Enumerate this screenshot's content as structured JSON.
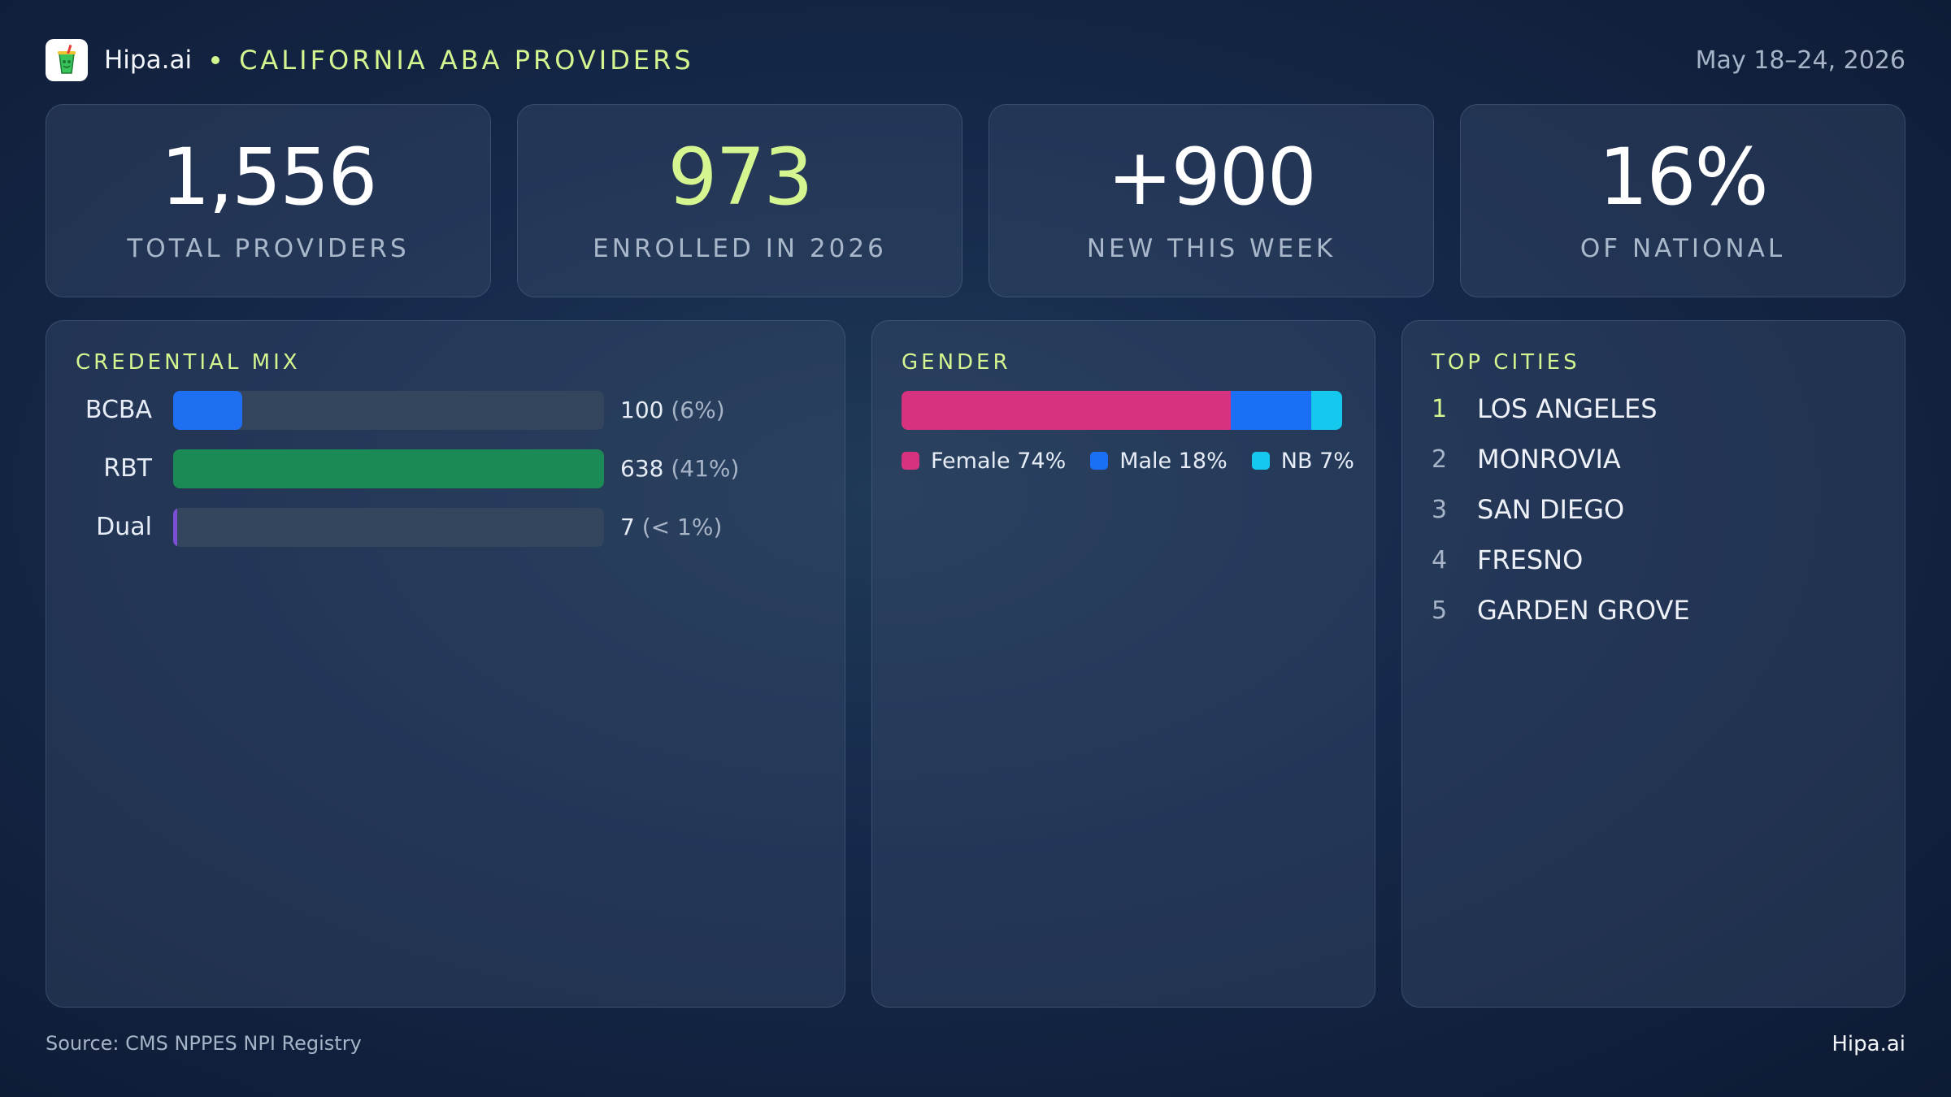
{
  "header": {
    "brand": "Hipa.ai",
    "section_title": "CALIFORNIA ABA PROVIDERS",
    "date_range": "May 18–24, 2026"
  },
  "kpis": [
    {
      "value": "1,556",
      "label": "TOTAL PROVIDERS",
      "accent": false
    },
    {
      "value": "973",
      "label": "ENROLLED IN 2026",
      "accent": true
    },
    {
      "value": "+900",
      "label": "NEW THIS WEEK",
      "accent": false
    },
    {
      "value": "16%",
      "label": "OF NATIONAL",
      "accent": false
    }
  ],
  "credential_mix": {
    "title": "CREDENTIAL MIX",
    "items": [
      {
        "label": "BCBA",
        "count": "100",
        "pct": "(6%)",
        "share": 0.16,
        "color": "#1f6ff2"
      },
      {
        "label": "RBT",
        "count": "638",
        "pct": "(41%)",
        "share": 1.0,
        "color": "#1c8a55"
      },
      {
        "label": "Dual",
        "count": "7",
        "pct": "(< 1%)",
        "share": 0.01,
        "color": "#7a4fd6"
      }
    ]
  },
  "gender": {
    "title": "GENDER",
    "segments": [
      {
        "name": "Female",
        "label": "Female 74%",
        "share": 74,
        "color": "#d6327f"
      },
      {
        "name": "Male",
        "label": "Male 18%",
        "share": 18,
        "color": "#1a6ff5"
      },
      {
        "name": "NB",
        "label": "NB 7%",
        "share": 7,
        "color": "#14c8ee"
      }
    ]
  },
  "top_cities": {
    "title": "TOP CITIES",
    "items": [
      {
        "rank": "1",
        "name": "LOS ANGELES"
      },
      {
        "rank": "2",
        "name": "MONROVIA"
      },
      {
        "rank": "3",
        "name": "SAN DIEGO"
      },
      {
        "rank": "4",
        "name": "FRESNO"
      },
      {
        "rank": "5",
        "name": "GARDEN GROVE"
      }
    ]
  },
  "footer": {
    "source": "Source: CMS NPPES NPI Registry",
    "brand": "Hipa.ai"
  },
  "icons": {
    "logo": "drink-cup-icon"
  },
  "colors": {
    "accent": "#d4f58f",
    "background": "#16294a"
  }
}
